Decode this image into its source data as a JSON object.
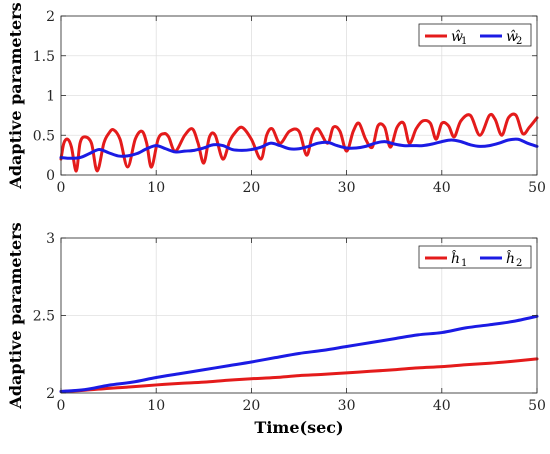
{
  "chart_data": [
    {
      "type": "line",
      "ylabel": "Adaptive parameters",
      "xlabel": "",
      "xlim": [
        0,
        50
      ],
      "ylim": [
        0,
        2
      ],
      "xticks": [
        "0",
        "10",
        "20",
        "30",
        "40",
        "50"
      ],
      "yticks": [
        "0",
        "0.5",
        "1",
        "1.5",
        "2"
      ],
      "grid": true,
      "legend_position": "top-right",
      "series": [
        {
          "name": "ŵ1",
          "legend_base": "ŵ",
          "legend_sub": "1",
          "color": "#e41b1b",
          "x": [
            0,
            0.3,
            0.7,
            1.1,
            1.6,
            2.0,
            2.5,
            3.2,
            3.8,
            4.5,
            5.0,
            5.5,
            6.2,
            7.0,
            7.8,
            8.5,
            9.0,
            9.5,
            10.2,
            10.8,
            11.3,
            12.0,
            13.0,
            13.8,
            14.4,
            15.0,
            15.6,
            16.2,
            17.0,
            17.7,
            18.2,
            19.0,
            20.0,
            21.0,
            21.6,
            22.2,
            23.0,
            24.0,
            25.0,
            25.8,
            26.4,
            27.0,
            28.0,
            28.6,
            29.3,
            30.0,
            30.7,
            31.3,
            32.0,
            32.7,
            33.3,
            34.0,
            34.6,
            35.3,
            36.0,
            36.6,
            37.3,
            38.0,
            38.8,
            39.4,
            40.0,
            40.7,
            41.3,
            42.0,
            43.0,
            44.0,
            45.0,
            45.6,
            46.3,
            47.0,
            47.8,
            48.5,
            49.2,
            50.0
          ],
          "y": [
            0.2,
            0.4,
            0.45,
            0.35,
            0.05,
            0.4,
            0.48,
            0.4,
            0.05,
            0.4,
            0.52,
            0.57,
            0.45,
            0.1,
            0.45,
            0.55,
            0.4,
            0.1,
            0.45,
            0.52,
            0.48,
            0.3,
            0.5,
            0.58,
            0.4,
            0.15,
            0.48,
            0.5,
            0.2,
            0.42,
            0.52,
            0.6,
            0.45,
            0.2,
            0.5,
            0.58,
            0.4,
            0.55,
            0.55,
            0.25,
            0.5,
            0.58,
            0.4,
            0.6,
            0.55,
            0.3,
            0.55,
            0.65,
            0.45,
            0.35,
            0.62,
            0.6,
            0.35,
            0.6,
            0.65,
            0.4,
            0.58,
            0.68,
            0.65,
            0.45,
            0.65,
            0.62,
            0.48,
            0.68,
            0.75,
            0.5,
            0.75,
            0.7,
            0.5,
            0.72,
            0.75,
            0.52,
            0.6,
            0.72
          ]
        },
        {
          "name": "ŵ2",
          "legend_base": "ŵ",
          "legend_sub": "2",
          "color": "#1b1be4",
          "x": [
            0,
            1,
            2,
            3,
            4,
            5,
            6,
            7,
            8,
            9,
            10,
            11,
            12,
            13,
            14,
            15,
            16,
            17,
            18,
            19,
            20,
            21,
            22,
            23,
            24,
            25,
            26,
            27,
            28,
            29,
            30,
            31,
            32,
            33,
            34,
            35,
            36,
            37,
            38,
            39,
            40,
            41,
            42,
            43,
            44,
            45,
            46,
            47,
            48,
            49,
            50
          ],
          "y": [
            0.22,
            0.21,
            0.22,
            0.27,
            0.32,
            0.28,
            0.24,
            0.24,
            0.27,
            0.33,
            0.37,
            0.33,
            0.29,
            0.3,
            0.31,
            0.34,
            0.38,
            0.37,
            0.32,
            0.31,
            0.32,
            0.35,
            0.4,
            0.37,
            0.33,
            0.33,
            0.36,
            0.4,
            0.41,
            0.37,
            0.34,
            0.34,
            0.36,
            0.4,
            0.42,
            0.39,
            0.37,
            0.37,
            0.37,
            0.39,
            0.42,
            0.44,
            0.42,
            0.38,
            0.36,
            0.37,
            0.4,
            0.44,
            0.45,
            0.4,
            0.36
          ]
        }
      ]
    },
    {
      "type": "line",
      "ylabel": "Adaptive parameters",
      "xlabel": "Time(sec)",
      "xlim": [
        0,
        50
      ],
      "ylim": [
        2,
        3
      ],
      "xticks": [
        "0",
        "10",
        "20",
        "30",
        "40",
        "50"
      ],
      "yticks": [
        "2",
        "2.5",
        "3"
      ],
      "grid": true,
      "legend_position": "top-right",
      "series": [
        {
          "name": "ĥ1",
          "legend_base": "ĥ",
          "legend_sub": "1",
          "color": "#e41b1b",
          "x": [
            0,
            2.5,
            5,
            7.5,
            10,
            12.5,
            15,
            17.5,
            20,
            22.5,
            25,
            27.5,
            30,
            32.5,
            35,
            37.5,
            40,
            42.5,
            45,
            47.5,
            50
          ],
          "y": [
            2.01,
            2.018,
            2.03,
            2.04,
            2.052,
            2.062,
            2.07,
            2.082,
            2.092,
            2.1,
            2.112,
            2.12,
            2.13,
            2.14,
            2.15,
            2.162,
            2.17,
            2.182,
            2.192,
            2.205,
            2.22
          ]
        },
        {
          "name": "ĥ2",
          "legend_base": "ĥ",
          "legend_sub": "2",
          "color": "#1b1be4",
          "x": [
            0,
            2.5,
            5,
            7.5,
            10,
            12.5,
            15,
            17.5,
            20,
            22.5,
            25,
            27.5,
            30,
            32.5,
            35,
            37.5,
            40,
            42.5,
            45,
            47.5,
            50
          ],
          "y": [
            2.01,
            2.022,
            2.05,
            2.07,
            2.1,
            2.125,
            2.15,
            2.175,
            2.2,
            2.228,
            2.255,
            2.275,
            2.3,
            2.325,
            2.35,
            2.375,
            2.39,
            2.42,
            2.44,
            2.462,
            2.495
          ]
        }
      ]
    }
  ]
}
